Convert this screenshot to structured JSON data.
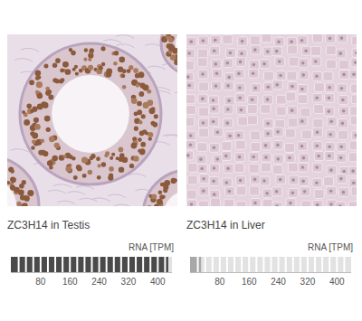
{
  "chart_data": [
    {
      "type": "bar",
      "orientation": "horizontal",
      "title": "ZC3H14 in Testis",
      "xlabel": "RNA [TPM]",
      "values": [
        430
      ],
      "color": "#4a4a4a",
      "xlim": [
        0,
        440
      ],
      "xticks": [
        80,
        160,
        240,
        320,
        400
      ],
      "grid": false
    },
    {
      "type": "bar",
      "orientation": "horizontal",
      "title": "ZC3H14 in Liver",
      "xlabel": "RNA [TPM]",
      "values": [
        30
      ],
      "color": "#a8a8a8",
      "xlim": [
        0,
        440
      ],
      "xticks": [
        80,
        160,
        240,
        320,
        400
      ],
      "grid": false
    }
  ]
}
